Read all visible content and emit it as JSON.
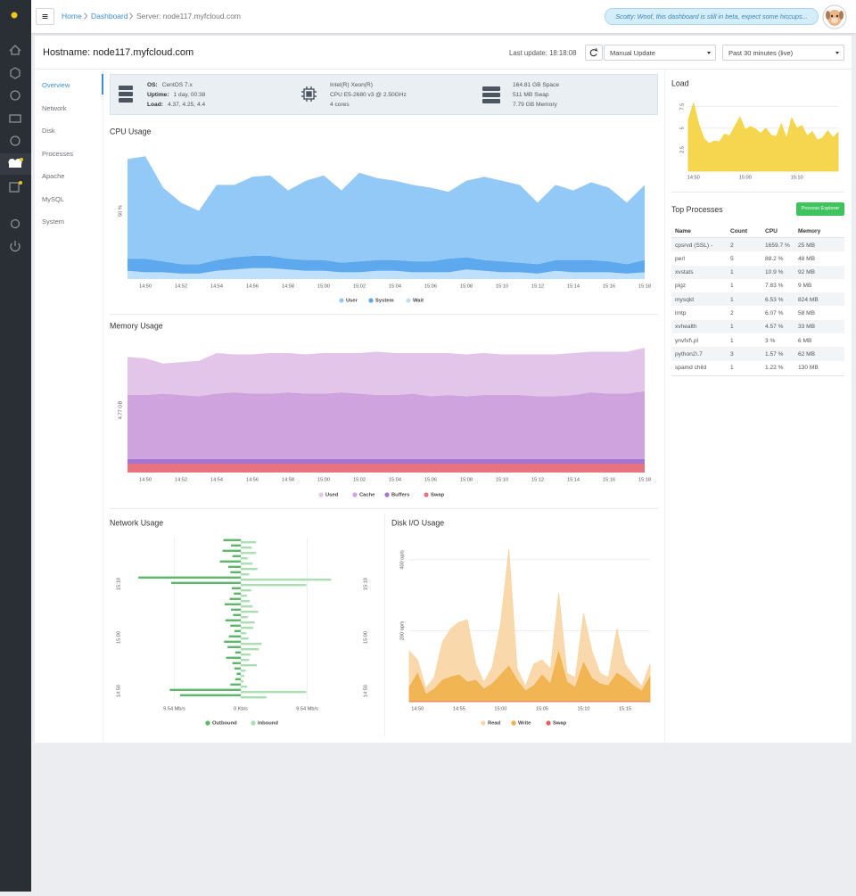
{
  "topbar": {
    "breadcrumb": [
      "Home",
      "Dashboard",
      "Server: node117.myfcloud.com"
    ],
    "notice": "Scotty: Woof, this dashboard is still in beta, expect some hiccups..."
  },
  "header": {
    "hostname": "Hostname: node117.myfcloud.com",
    "last_update": "Last update: 18:18:08",
    "update_mode": "Manual Update",
    "time_range": "Past 30 minutes (live)"
  },
  "nav": [
    "Overview",
    "Network",
    "Disk",
    "Processes",
    "Apache",
    "MySQL",
    "System"
  ],
  "summary": {
    "os": [
      {
        "label": "OS:",
        "value": "CentOS 7.x"
      },
      {
        "label": "Uptime:",
        "value": "1 day, 00:38"
      },
      {
        "label": "Load:",
        "value": "4.37, 4.25, 4.4"
      }
    ],
    "cpu": [
      "Intel(R) Xeon(R)",
      "CPU E5-2680 v3 @ 2.50GHz",
      "4 cores"
    ],
    "storage": [
      "164.81 GB Space",
      "511 MB Swap",
      "7.79 GB Memory"
    ]
  },
  "top_processes": {
    "title": "Top Processes",
    "button": "Process Explorer",
    "columns": [
      "Name",
      "Count",
      "CPU",
      "Memory"
    ],
    "rows": [
      [
        "cpsrvd (SSL) -",
        2,
        "1659.7 %",
        "25 MB"
      ],
      [
        "perl",
        5,
        "88.2 %",
        "48 MB"
      ],
      [
        "xvstats",
        1,
        "10.9 %",
        "92 MB"
      ],
      [
        "pigz",
        1,
        "7.83 %",
        "9 MB"
      ],
      [
        "mysqld",
        1,
        "6.53 %",
        "824 MB"
      ],
      [
        "lmtp",
        2,
        "6.07 %",
        "58 MB"
      ],
      [
        "xvhealth",
        1,
        "4.57 %",
        "33 MB"
      ],
      [
        "ynvfxf\\.pl",
        1,
        "3 %",
        "6 MB"
      ],
      [
        "python2\\.7",
        3,
        "1.57 %",
        "62 MB"
      ],
      [
        "spamd child",
        1,
        "1.22 %",
        "130 MB"
      ]
    ]
  },
  "chart_data": [
    {
      "type": "area",
      "stacked": true,
      "title": "CPU Usage",
      "grid": true,
      "categories": [
        null,
        "14:50",
        null,
        "14:52",
        null,
        "14:54",
        null,
        "14:56",
        null,
        "14:58",
        null,
        "15:00",
        null,
        "15:02",
        null,
        "15:04",
        null,
        "15:06",
        null,
        "15:08",
        null,
        "15:10",
        null,
        "15:12",
        null,
        "15:14",
        null,
        "15:16",
        null,
        "15:18"
      ],
      "ylim": [
        0,
        100
      ],
      "yticks": [
        {
          "value": 50,
          "label": "50 %"
        }
      ],
      "series": [
        {
          "name": "User",
          "color": "#93c9f7",
          "values": [
            73,
            75,
            54,
            45,
            39,
            55,
            53,
            58,
            59,
            50,
            58,
            62,
            53,
            65,
            60,
            58,
            56,
            54,
            49,
            56,
            61,
            59,
            57,
            45,
            55,
            51,
            57,
            54,
            45,
            55
          ]
        },
        {
          "name": "System",
          "color": "#5ea8ee",
          "values": [
            9,
            10,
            8,
            7,
            7,
            8,
            9,
            9,
            9,
            8,
            8,
            8,
            7,
            8,
            8,
            8,
            8,
            8,
            10,
            9,
            8,
            8,
            7,
            7,
            8,
            9,
            9,
            8,
            7,
            9
          ]
        },
        {
          "name": "Wait",
          "color": "#bfe0fb",
          "values": [
            6,
            5,
            5,
            4,
            4,
            6,
            7,
            8,
            8,
            7,
            6,
            6,
            5,
            5,
            6,
            6,
            5,
            5,
            5,
            7,
            6,
            5,
            5,
            4,
            6,
            5,
            5,
            5,
            4,
            5
          ]
        }
      ]
    },
    {
      "type": "area",
      "stacked": true,
      "title": "Memory Usage",
      "grid": true,
      "categories": [
        null,
        "14:50",
        null,
        "14:52",
        null,
        "14:54",
        null,
        "14:56",
        null,
        "14:58",
        null,
        "15:00",
        null,
        "15:02",
        null,
        "15:04",
        null,
        "15:06",
        null,
        "15:08",
        null,
        "15:10",
        null,
        "15:12",
        null,
        "15:14",
        null,
        "15:16",
        null,
        "15:18"
      ],
      "ylim": [
        0,
        9.54
      ],
      "yticks": [
        {
          "value": 4.77,
          "label": "4.77 GB"
        }
      ],
      "series": [
        {
          "name": "Used",
          "color": "#e3c5ea",
          "values": [
            2.9,
            2.8,
            2.3,
            2.5,
            2.7,
            3.1,
            2.9,
            3.0,
            3.1,
            3.0,
            3.0,
            3.1,
            3.0,
            3.1,
            3.3,
            3.2,
            3.1,
            3.3,
            3.2,
            3.2,
            3.2,
            3.1,
            3.1,
            3.2,
            3.2,
            3.2,
            3.1,
            3.2,
            3.2,
            3.3
          ]
        },
        {
          "name": "Cache",
          "color": "#cfa3de",
          "values": [
            4.9,
            4.9,
            5.0,
            4.9,
            4.8,
            5.0,
            5.1,
            5.0,
            5.0,
            5.1,
            5.0,
            5.0,
            5.1,
            5.0,
            4.9,
            4.9,
            5.0,
            4.8,
            4.9,
            4.8,
            4.9,
            4.9,
            4.9,
            4.8,
            4.8,
            4.9,
            5.1,
            5.0,
            5.0,
            5.2
          ]
        },
        {
          "name": "Buffers",
          "color": "#a374d4",
          "values": [
            0.35,
            0.35,
            0.35,
            0.35,
            0.35,
            0.35,
            0.35,
            0.35,
            0.35,
            0.35,
            0.35,
            0.35,
            0.35,
            0.35,
            0.35,
            0.35,
            0.35,
            0.35,
            0.35,
            0.35,
            0.35,
            0.35,
            0.35,
            0.35,
            0.35,
            0.35,
            0.35,
            0.35,
            0.35,
            0.35
          ]
        },
        {
          "name": "Swap",
          "color": "#e8727e",
          "values": [
            0.68,
            0.68,
            0.68,
            0.68,
            0.68,
            0.68,
            0.68,
            0.68,
            0.68,
            0.68,
            0.68,
            0.68,
            0.68,
            0.68,
            0.68,
            0.68,
            0.68,
            0.68,
            0.68,
            0.68,
            0.68,
            0.68,
            0.68,
            0.68,
            0.68,
            0.68,
            0.68,
            0.68,
            0.68,
            0.68
          ]
        }
      ]
    },
    {
      "type": "bar",
      "orientation": "diverging",
      "title": "Network Usage",
      "grid": true,
      "categories": [
        null,
        "14:50",
        null,
        null,
        null,
        null,
        null,
        null,
        null,
        null,
        null,
        "15:00",
        null,
        null,
        null,
        null,
        null,
        null,
        null,
        null,
        null,
        "15:10",
        null,
        null,
        null,
        null,
        null,
        null,
        null,
        null
      ],
      "xlim": [
        0,
        16
      ],
      "xticks": [
        {
          "value": 0,
          "label": "0 Kb/s"
        },
        {
          "value": 9.54,
          "label": "9.54 Mb/s"
        }
      ],
      "series": [
        {
          "name": "Outbound",
          "color": "#5cb869",
          "values": [
            8.7,
            10.2,
            1.5,
            0.8,
            0.6,
            0.9,
            1.2,
            2.1,
            0.8,
            1.9,
            2.4,
            1.7,
            0.9,
            1.5,
            2.2,
            1.1,
            1.4,
            2.3,
            1.6,
            1.0,
            1.3,
            10.0,
            14.7,
            1.5,
            1.8,
            3.0,
            1.2,
            2.6,
            1.4,
            2.5
          ]
        },
        {
          "name": "Inbound",
          "color": "#a9dfb1",
          "values": [
            3.7,
            9.4,
            0.9,
            0.4,
            0.5,
            0.7,
            2.3,
            1.2,
            1.4,
            2.6,
            3.0,
            1.1,
            0.8,
            1.8,
            2.0,
            1.0,
            2.5,
            1.7,
            1.3,
            0.9,
            1.5,
            9.4,
            13.0,
            1.2,
            2.4,
            1.7,
            1.0,
            2.2,
            1.6,
            2.2
          ]
        }
      ]
    },
    {
      "type": "area",
      "stacked": false,
      "title": "Disk I/O Usage",
      "grid": true,
      "categories": [
        null,
        "14:50",
        null,
        null,
        null,
        null,
        "14:55",
        null,
        null,
        null,
        null,
        "15:00",
        null,
        null,
        null,
        null,
        "15:05",
        null,
        null,
        null,
        null,
        "15:10",
        null,
        null,
        null,
        null,
        "15:15",
        null,
        null,
        null
      ],
      "ylim": [
        0,
        440
      ],
      "yticks": [
        {
          "value": 200,
          "label": "200 op/s"
        },
        {
          "value": 400,
          "label": "400 op/s"
        }
      ],
      "series": [
        {
          "name": "Read",
          "color": "#f8d5a3",
          "values": [
            143,
            118,
            38,
            68,
            168,
            206,
            224,
            231,
            106,
            55,
            98,
            219,
            430,
            93,
            43,
            106,
            118,
            93,
            307,
            80,
            68,
            249,
            143,
            80,
            68,
            206,
            106,
            73,
            43,
            106
          ]
        },
        {
          "name": "Write",
          "color": "#f0b04a",
          "values": [
            40,
            80,
            20,
            35,
            60,
            70,
            75,
            55,
            60,
            35,
            50,
            75,
            100,
            60,
            30,
            45,
            75,
            50,
            140,
            55,
            40,
            110,
            65,
            50,
            45,
            80,
            65,
            45,
            30,
            70
          ]
        },
        {
          "name": "Swap",
          "color": "#e55f5f",
          "values": [
            0,
            0,
            0,
            0,
            0,
            0,
            0,
            0,
            0,
            0,
            0,
            0,
            0,
            0,
            0,
            0,
            0,
            0,
            0,
            0,
            0,
            0,
            0,
            0,
            0,
            0,
            0,
            0,
            0,
            0
          ]
        }
      ]
    },
    {
      "type": "area",
      "stacked": false,
      "title": "Load",
      "grid": true,
      "color": "#f4d13b",
      "categories": [
        null,
        "14:50",
        null,
        null,
        null,
        null,
        null,
        null,
        null,
        null,
        null,
        "15:00",
        null,
        null,
        null,
        null,
        null,
        null,
        null,
        null,
        null,
        "15:10",
        null,
        null,
        null,
        null,
        null,
        null,
        null,
        null
      ],
      "ylim": [
        0,
        8.5
      ],
      "yticks": [
        2.5,
        5,
        7.5
      ],
      "values": [
        6.0,
        7.9,
        5.5,
        3.8,
        3.2,
        3.5,
        3.4,
        4.3,
        4.1,
        5.2,
        6.3,
        4.8,
        5.2,
        4.9,
        4.4,
        5.0,
        4.2,
        4.0,
        5.5,
        3.8,
        6.2,
        5.0,
        5.3,
        4.1,
        4.6,
        3.6,
        3.9,
        4.7,
        3.9,
        4.5
      ]
    }
  ]
}
